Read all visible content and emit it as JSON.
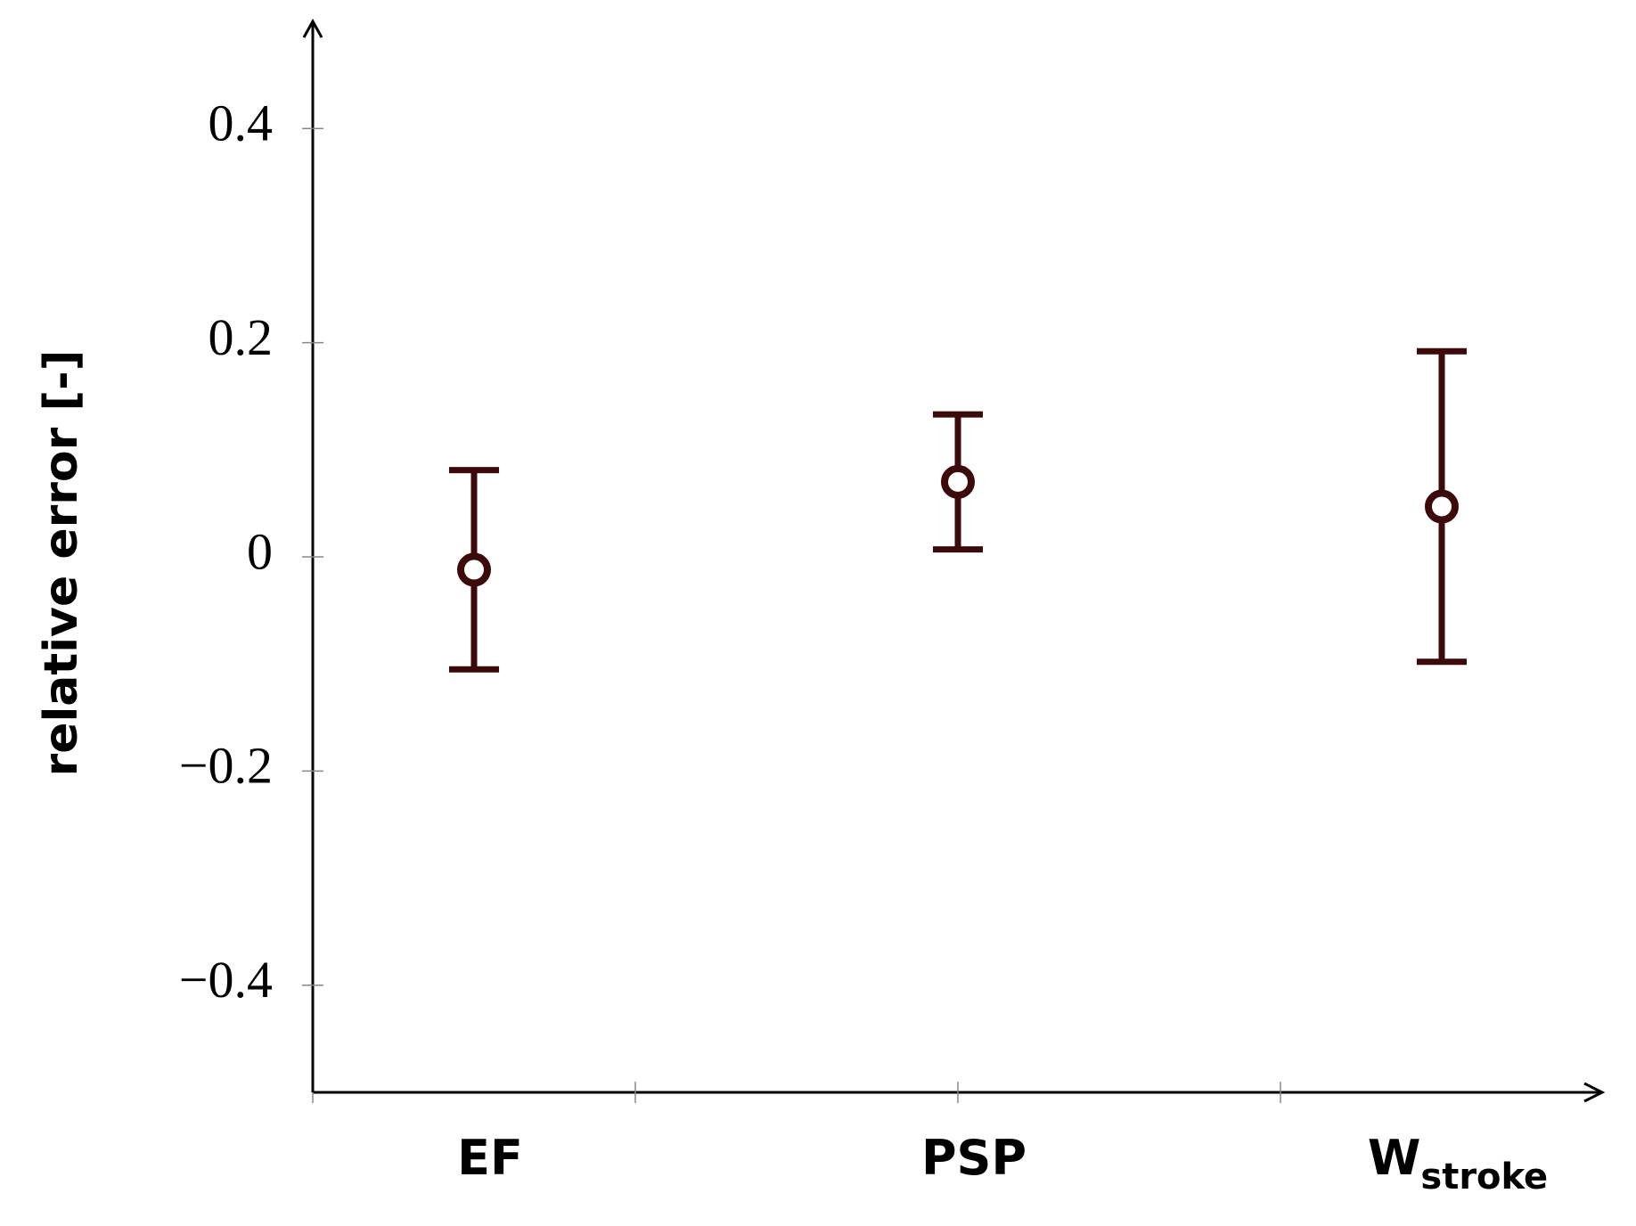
{
  "chart_data": {
    "type": "errorbar",
    "y_label": "relative error [-]",
    "categories": [
      "EF",
      "PSP",
      "W"
    ],
    "category_subscripts": [
      null,
      null,
      "stroke"
    ],
    "values": [
      -0.012,
      0.07,
      0.047
    ],
    "errors": [
      0.093,
      0.063,
      0.145
    ],
    "color": "#3d0a0c",
    "ylim": [
      -0.5,
      0.5
    ],
    "yticks": [
      {
        "value": -0.4,
        "label": "−0.4"
      },
      {
        "value": -0.2,
        "label": "−0.2"
      },
      0,
      0.2,
      0.4
    ]
  }
}
